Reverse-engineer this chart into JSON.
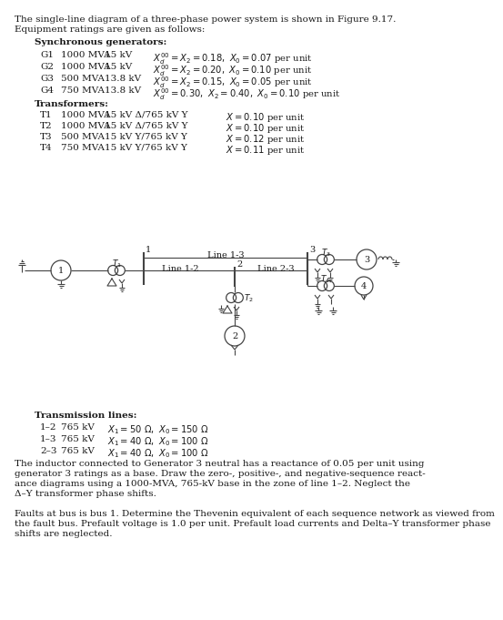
{
  "bg_color": "#ffffff",
  "text_color": "#1a1a1a",
  "line_color": "#444444",
  "font_size_body": 7.5,
  "font_size_small": 6.5,
  "title_line1": "The single-line diagram of a three-phase power system is shown in Figure 9.17.",
  "title_line2": "Equipment ratings are given as follows:",
  "sync_header": "Synchronous generators:",
  "gen_rows": [
    [
      "G1",
      "1000 MVA",
      "15 kV",
      "X_d'' = X_2 = 0.18, X_0 = 0.07 per unit"
    ],
    [
      "G2",
      "1000 MVA",
      "15 kV",
      "X_d'' = X_2 = 0.20, X_0 = 0.10 per unit"
    ],
    [
      "G3",
      "500 MVA",
      "13.8 kV",
      "X_d'' = X_2 = 0.15, X_0 = 0.05 per unit"
    ],
    [
      "G4",
      "750 MVA",
      "13.8 kV",
      "X_d'' = 0.30, X_2 = 0.40, X_0 = 0.10 per unit"
    ]
  ],
  "xfmr_header": "Transformers:",
  "xfmr_rows": [
    [
      "T1",
      "1000 MVA",
      "15 kV Δ/765 kV Y",
      "X = 0.10 per unit"
    ],
    [
      "T2",
      "1000 MVA",
      "15 kV Δ/765 kV Y",
      "X = 0.10 per unit"
    ],
    [
      "T3",
      "500 MVA",
      "15 kV Y/765 kV Y",
      "X = 0.12 per unit"
    ],
    [
      "T4",
      "750 MVA",
      "15 kV Y/765 kV Y",
      "X = 0.11 per unit"
    ]
  ],
  "tl_header": "Transmission lines:",
  "tl_rows": [
    [
      "1–2",
      "765 kV",
      "X_1 = 50 Ω,  X_0 = 150 Ω"
    ],
    [
      "1–3",
      "765 kV",
      "X_1 = 40 Ω,  X_0 = 100 Ω"
    ],
    [
      "2–3",
      "765 kV",
      "X_1 = 40 Ω,  X_0 = 100 Ω"
    ]
  ],
  "para1_lines": [
    "The inductor connected to Generator 3 neutral has a reactance of 0.05 per unit using",
    "generator 3 ratings as a base. Draw the zero-, positive-, and negative-sequence react-",
    "ance diagrams using a 1000-MVA, 765-kV base in the zone of line 1–2. Neglect the",
    "Δ–Y transformer phase shifts."
  ],
  "para2_lines": [
    "Faults at bus is bus 1. Determine the Thevenin equivalent of each sequence network as viewed from",
    "the fault bus. Prefault voltage is 1.0 per unit. Prefault load currents and Delta–Y transformer phase",
    "shifts are neglected."
  ]
}
